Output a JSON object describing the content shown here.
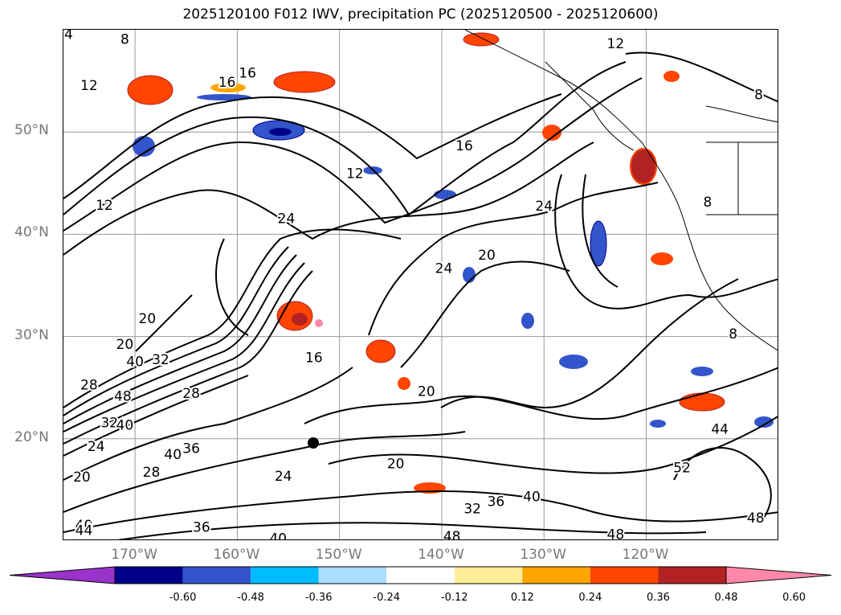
{
  "title": "2025120100 F012 IWV, precipitation PC (2025120500 - 2025120600)",
  "lat_labels": [
    {
      "text": "50°N",
      "lat": 50
    },
    {
      "text": "40°N",
      "lat": 40
    },
    {
      "text": "30°N",
      "lat": 30
    },
    {
      "text": "20°N",
      "lat": 20
    }
  ],
  "lon_labels": [
    {
      "text": "170°W",
      "lon": -170
    },
    {
      "text": "160°W",
      "lon": -160
    },
    {
      "text": "150°W",
      "lon": -150
    },
    {
      "text": "140°W",
      "lon": -140
    },
    {
      "text": "130°W",
      "lon": -130
    },
    {
      "text": "120°W",
      "lon": -120
    }
  ],
  "extent": {
    "lon_min": -177,
    "lon_max": -107,
    "lat_min": 10,
    "lat_max": 60
  },
  "colorbar": {
    "ticks": [
      "-0.60",
      "-0.48",
      "-0.36",
      "-0.24",
      "-0.12",
      "0.12",
      "0.24",
      "0.36",
      "0.48",
      "0.60"
    ],
    "colors": [
      "#9933cc",
      "#00008b",
      "#3355cc",
      "#00bbff",
      "#aaddff",
      "#ffffff",
      "#ffee99",
      "#ffa500",
      "#ff4500",
      "#b22222",
      "#ff88aa"
    ],
    "extend": "both"
  },
  "contour_labels": [
    {
      "text": "4",
      "lon": -176.5,
      "lat": 59.5
    },
    {
      "text": "8",
      "lon": -171,
      "lat": 59
    },
    {
      "text": "12",
      "lon": -174.5,
      "lat": 54.5
    },
    {
      "text": "16",
      "lon": -161,
      "lat": 54.8
    },
    {
      "text": "16",
      "lon": -159,
      "lat": 55.7
    },
    {
      "text": "12",
      "lon": -123,
      "lat": 58.6
    },
    {
      "text": "8",
      "lon": -109,
      "lat": 53.6
    },
    {
      "text": "12",
      "lon": -173,
      "lat": 42.8
    },
    {
      "text": "24",
      "lon": -155.2,
      "lat": 41.5
    },
    {
      "text": "12",
      "lon": -148.5,
      "lat": 45.9
    },
    {
      "text": "16",
      "lon": -137.8,
      "lat": 48.6
    },
    {
      "text": "24",
      "lon": -130,
      "lat": 42.7
    },
    {
      "text": "20",
      "lon": -135.6,
      "lat": 37.9
    },
    {
      "text": "24",
      "lon": -139.8,
      "lat": 36.6
    },
    {
      "text": "20",
      "lon": -168.8,
      "lat": 31.7
    },
    {
      "text": "20",
      "lon": -171,
      "lat": 29.2
    },
    {
      "text": "40",
      "lon": -170,
      "lat": 27.5
    },
    {
      "text": "32",
      "lon": -167.5,
      "lat": 27.7
    },
    {
      "text": "28",
      "lon": -174.5,
      "lat": 25.2
    },
    {
      "text": "48",
      "lon": -171.2,
      "lat": 24.1
    },
    {
      "text": "32",
      "lon": -172.5,
      "lat": 21.5
    },
    {
      "text": "40",
      "lon": -171,
      "lat": 21.3
    },
    {
      "text": "28",
      "lon": -164.5,
      "lat": 24.4
    },
    {
      "text": "24",
      "lon": -173.8,
      "lat": 19.2
    },
    {
      "text": "20",
      "lon": -175.2,
      "lat": 16.2
    },
    {
      "text": "28",
      "lon": -168.4,
      "lat": 16.7
    },
    {
      "text": "40",
      "lon": -166.3,
      "lat": 18.4
    },
    {
      "text": "36",
      "lon": -164.5,
      "lat": 19
    },
    {
      "text": "40",
      "lon": -175,
      "lat": 11.5
    },
    {
      "text": "44",
      "lon": -175,
      "lat": 11
    },
    {
      "text": "36",
      "lon": -163.5,
      "lat": 11.3
    },
    {
      "text": "24",
      "lon": -155.5,
      "lat": 16.3
    },
    {
      "text": "40",
      "lon": -156,
      "lat": 10.2
    },
    {
      "text": "20",
      "lon": -144.5,
      "lat": 17.5
    },
    {
      "text": "20",
      "lon": -141.5,
      "lat": 24.6
    },
    {
      "text": "32",
      "lon": -137,
      "lat": 13.1
    },
    {
      "text": "36",
      "lon": -134.7,
      "lat": 13.8
    },
    {
      "text": "40",
      "lon": -131.2,
      "lat": 14.3
    },
    {
      "text": "48",
      "lon": -139,
      "lat": 10.4
    },
    {
      "text": "48",
      "lon": -123,
      "lat": 10.6
    },
    {
      "text": "52",
      "lon": -116.5,
      "lat": 17.1
    },
    {
      "text": "44",
      "lon": -112.8,
      "lat": 20.9
    },
    {
      "text": "48",
      "lon": -109.3,
      "lat": 12.2
    },
    {
      "text": "16",
      "lon": -152.5,
      "lat": 27.9
    },
    {
      "text": "8",
      "lon": -114,
      "lat": 43.1
    },
    {
      "text": "8",
      "lon": -111.5,
      "lat": 30.2
    }
  ]
}
